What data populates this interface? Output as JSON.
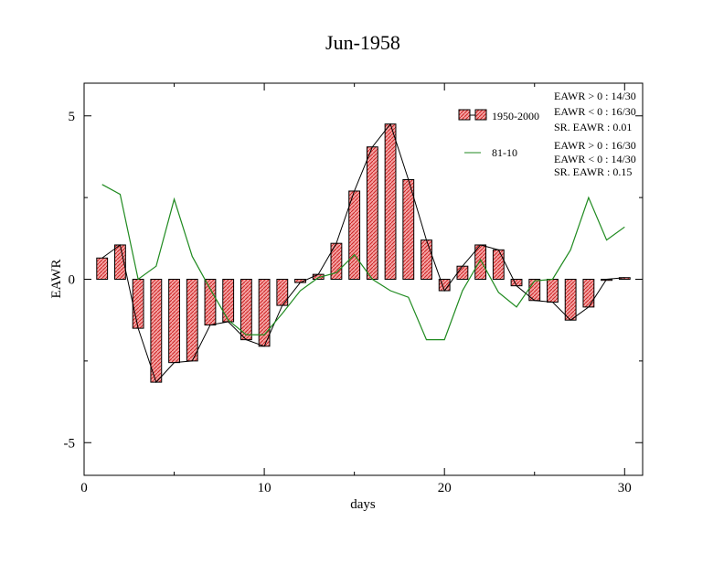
{
  "chart_data": {
    "type": "bar",
    "title": "Jun-1958",
    "xlabel": "days",
    "ylabel": "EAWR",
    "xlim": [
      0,
      31
    ],
    "ylim": [
      -6,
      6
    ],
    "x_ticks": [
      0,
      10,
      20,
      30
    ],
    "x_tick_labels": [
      "0",
      "10",
      "20",
      "30"
    ],
    "y_ticks": [
      -5,
      0,
      5
    ],
    "y_tick_labels": [
      "-5",
      "0",
      "5"
    ],
    "grid": false,
    "legend_position": "top-right",
    "colors": {
      "bar_fill": "#f4a3a3",
      "bar_hatch": "#cc2222",
      "bar_outline": "#000000",
      "line_1950_2000": "#000000",
      "line_81_10": "#1f8a1f"
    },
    "x": [
      1,
      2,
      3,
      4,
      5,
      6,
      7,
      8,
      9,
      10,
      11,
      12,
      13,
      14,
      15,
      16,
      17,
      18,
      19,
      20,
      21,
      22,
      23,
      24,
      25,
      26,
      27,
      28,
      29,
      30
    ],
    "series": [
      {
        "name": "1950-2000",
        "type": "bar+line",
        "values": [
          0.65,
          1.05,
          -1.5,
          -3.15,
          -2.55,
          -2.5,
          -1.4,
          -1.3,
          -1.85,
          -2.05,
          -0.8,
          -0.1,
          0.15,
          1.1,
          2.7,
          4.05,
          4.75,
          3.05,
          1.2,
          -0.35,
          0.4,
          1.05,
          0.9,
          -0.2,
          -0.65,
          -0.7,
          -1.25,
          -0.85,
          0.0,
          0.05
        ]
      },
      {
        "name": "81-10",
        "type": "line",
        "values": [
          2.9,
          2.6,
          0.0,
          0.4,
          2.45,
          0.7,
          -0.3,
          -1.25,
          -1.7,
          -1.7,
          -1.05,
          -0.35,
          0.05,
          0.2,
          0.75,
          0.0,
          -0.35,
          -0.55,
          -1.85,
          -1.85,
          -0.35,
          0.6,
          -0.4,
          -0.85,
          -0.05,
          0.0,
          0.9,
          2.5,
          1.2,
          1.6
        ]
      }
    ],
    "stats": [
      {
        "series": "1950-2000",
        "lines": [
          "EAWR > 0 : 14/30",
          "EAWR < 0 : 16/30",
          "SR. EAWR :  0.01"
        ]
      },
      {
        "series": "81-10",
        "lines": [
          "EAWR > 0 : 16/30",
          "EAWR < 0 : 14/30",
          "SR. EAWR :  0.15"
        ]
      }
    ]
  }
}
